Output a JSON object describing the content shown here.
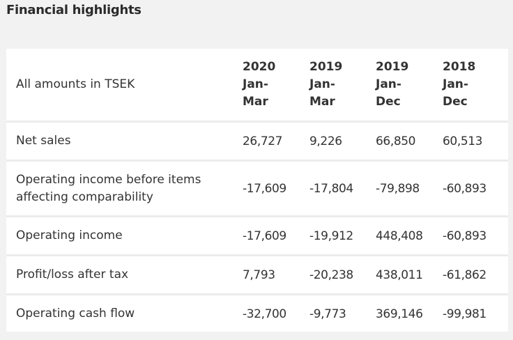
{
  "page": {
    "title": "Financial highlights"
  },
  "table": {
    "header_label": "All amounts in TSEK",
    "columns": [
      {
        "year": "2020",
        "line2": "Jan-",
        "line3": "Mar"
      },
      {
        "year": "2019",
        "line2": "Jan-",
        "line3": "Mar"
      },
      {
        "year": "2019",
        "line2": "Jan-",
        "line3": "Dec"
      },
      {
        "year": "2018",
        "line2": "Jan-",
        "line3": "Dec"
      }
    ],
    "rows": [
      {
        "label_line1": "Net sales",
        "label_line2": "",
        "values": [
          "26,727",
          "9,226",
          "66,850",
          "60,513"
        ]
      },
      {
        "label_line1": "Operating income before items",
        "label_line2": "affecting comparability",
        "values": [
          "-17,609",
          "-17,804",
          "-79,898",
          "-60,893"
        ]
      },
      {
        "label_line1": "Operating income",
        "label_line2": "",
        "values": [
          "-17,609",
          "-19,912",
          "448,408",
          "-60,893"
        ]
      },
      {
        "label_line1": "Profit/loss after tax",
        "label_line2": "",
        "values": [
          "7,793",
          "-20,238",
          "438,011",
          "-61,862"
        ]
      },
      {
        "label_line1": "Operating cash flow",
        "label_line2": "",
        "values": [
          "-32,700",
          "-9,773",
          "369,146",
          "-99,981"
        ]
      }
    ]
  }
}
